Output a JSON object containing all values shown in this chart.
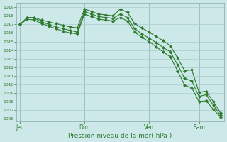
{
  "xlabel": "Pression niveau de la mer( hPa )",
  "ylim": [
    1005.7,
    1019.5
  ],
  "yticks": [
    1006,
    1007,
    1008,
    1009,
    1010,
    1011,
    1012,
    1013,
    1014,
    1015,
    1016,
    1017,
    1018,
    1019
  ],
  "bg_color": "#cce8e8",
  "grid_color": "#aacccc",
  "line_color": "#2d7a2d",
  "xtick_labels": [
    "Jeu",
    "Dim",
    "Ven",
    "Sam"
  ],
  "xtick_positions": [
    0,
    9,
    18,
    25
  ],
  "line1": [
    1017.0,
    1017.8,
    1017.8,
    1017.5,
    1017.3,
    1017.1,
    1016.9,
    1016.7,
    1016.6,
    1018.8,
    1018.5,
    1018.2,
    1018.1,
    1018.0,
    1018.8,
    1018.4,
    1017.1,
    1016.6,
    1016.1,
    1015.6,
    1015.1,
    1014.5,
    1013.1,
    1011.6,
    1011.7,
    1009.1,
    1009.2,
    1008.0,
    1006.7
  ],
  "line2": [
    1017.0,
    1017.8,
    1017.7,
    1017.3,
    1017.0,
    1016.7,
    1016.5,
    1016.3,
    1016.1,
    1018.5,
    1018.2,
    1017.9,
    1017.8,
    1017.7,
    1018.2,
    1017.8,
    1016.5,
    1015.9,
    1015.4,
    1014.9,
    1014.3,
    1013.8,
    1012.3,
    1010.7,
    1010.4,
    1008.6,
    1008.8,
    1007.6,
    1006.4
  ],
  "line3": [
    1017.0,
    1017.6,
    1017.5,
    1017.1,
    1016.8,
    1016.5,
    1016.2,
    1016.0,
    1015.9,
    1018.2,
    1017.9,
    1017.6,
    1017.5,
    1017.4,
    1017.8,
    1017.4,
    1016.1,
    1015.5,
    1015.0,
    1014.4,
    1013.8,
    1013.2,
    1011.6,
    1009.9,
    1009.6,
    1008.0,
    1008.1,
    1007.1,
    1006.2
  ],
  "n_points": 29
}
